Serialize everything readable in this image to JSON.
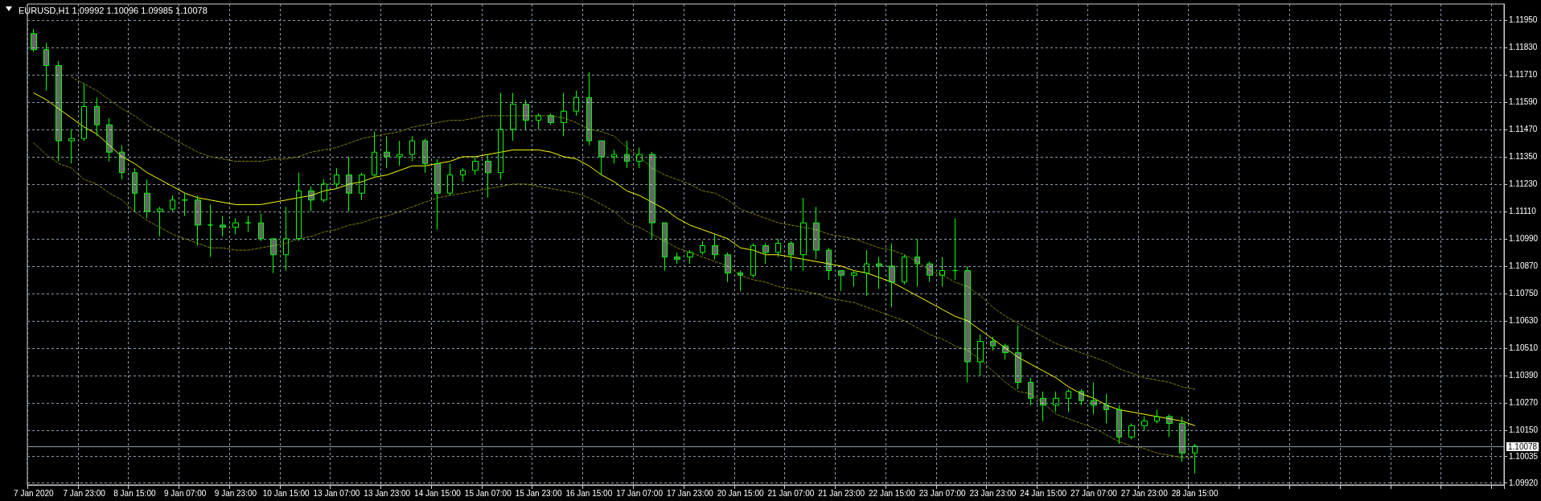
{
  "chart_data": {
    "type": "candlestick",
    "title": "EURUSD,H1 1.09992 1.10096 1.09985 1.10078",
    "color": "#00ff00",
    "categories": [
      "7 Jan 2020",
      null,
      null,
      null,
      "7 Jan 23:00",
      null,
      null,
      null,
      "8 Jan 15:00",
      null,
      null,
      null,
      "9 Jan 07:00",
      null,
      null,
      null,
      "9 Jan 23:00",
      null,
      null,
      null,
      "10 Jan 15:00",
      null,
      null,
      null,
      "13 Jan 07:00",
      null,
      null,
      null,
      "13 Jan 23:00",
      null,
      null,
      null,
      "14 Jan 15:00",
      null,
      null,
      null,
      "15 Jan 07:00",
      null,
      null,
      null,
      "15 Jan 23:00",
      null,
      null,
      null,
      "16 Jan 15:00",
      null,
      null,
      null,
      "17 Jan 07:00",
      null,
      null,
      null,
      "17 Jan 23:00",
      null,
      null,
      null,
      "20 Jan 15:00",
      null,
      null,
      null,
      "21 Jan 07:00",
      null,
      null,
      null,
      "21 Jan 23:00",
      null,
      null,
      null,
      "22 Jan 15:00",
      null,
      null,
      null,
      "23 Jan 07:00",
      null,
      null,
      null,
      "23 Jan 23:00",
      null,
      null,
      null,
      "24 Jan 15:00",
      null,
      null,
      null,
      "27 Jan 07:00",
      null,
      null,
      null,
      "27 Jan 23:00",
      null,
      null,
      null,
      "28 Jan 15:00",
      null,
      null,
      null,
      null,
      null,
      null,
      null,
      null,
      null,
      null,
      null,
      null,
      null,
      null,
      null,
      null,
      null,
      null,
      null,
      null,
      null,
      null,
      null,
      null
    ],
    "ohlc": [
      [
        1.1189,
        1.1191,
        1.1181,
        1.1182
      ],
      [
        1.1182,
        1.1185,
        1.1164,
        1.1175
      ],
      [
        1.1175,
        1.1177,
        1.1133,
        1.1142
      ],
      [
        1.1142,
        1.1147,
        1.1132,
        1.1143
      ],
      [
        1.1143,
        1.1167,
        1.1142,
        1.1157
      ],
      [
        1.1157,
        1.1161,
        1.1144,
        1.1149
      ],
      [
        1.1149,
        1.1152,
        1.1133,
        1.1137
      ],
      [
        1.1137,
        1.114,
        1.1125,
        1.1128
      ],
      [
        1.1128,
        1.113,
        1.1111,
        1.1119
      ],
      [
        1.1119,
        1.1125,
        1.1108,
        1.1111
      ],
      [
        1.1111,
        1.1113,
        1.11,
        1.1112
      ],
      [
        1.1112,
        1.1118,
        1.1111,
        1.1116
      ],
      [
        1.1116,
        1.1119,
        1.1109,
        1.1116
      ],
      [
        1.1116,
        1.1118,
        1.1096,
        1.1105
      ],
      [
        1.1105,
        1.1114,
        1.1091,
        1.1105
      ],
      [
        1.1105,
        1.1109,
        1.11,
        1.1104
      ],
      [
        1.1104,
        1.1108,
        1.1101,
        1.1106
      ],
      [
        1.1106,
        1.1109,
        1.1102,
        1.1106
      ],
      [
        1.1106,
        1.111,
        1.1098,
        1.1099
      ],
      [
        1.1099,
        1.1099,
        1.1084,
        1.1092
      ],
      [
        1.1092,
        1.1113,
        1.1085,
        1.1099
      ],
      [
        1.1099,
        1.1128,
        1.1098,
        1.112
      ],
      [
        1.112,
        1.1122,
        1.1111,
        1.1116
      ],
      [
        1.1116,
        1.1125,
        1.1115,
        1.1123
      ],
      [
        1.1123,
        1.113,
        1.1121,
        1.1127
      ],
      [
        1.1127,
        1.1135,
        1.1111,
        1.1119
      ],
      [
        1.1119,
        1.1128,
        1.1116,
        1.1127
      ],
      [
        1.1127,
        1.1146,
        1.1126,
        1.1137
      ],
      [
        1.1137,
        1.1144,
        1.113,
        1.1135
      ],
      [
        1.1135,
        1.1142,
        1.1131,
        1.1136
      ],
      [
        1.1136,
        1.1144,
        1.1133,
        1.1142
      ],
      [
        1.1142,
        1.1143,
        1.1128,
        1.1132
      ],
      [
        1.1132,
        1.1134,
        1.1103,
        1.1119
      ],
      [
        1.1119,
        1.1132,
        1.1118,
        1.1127
      ],
      [
        1.1127,
        1.113,
        1.1124,
        1.1129
      ],
      [
        1.1129,
        1.1135,
        1.1127,
        1.1133
      ],
      [
        1.1133,
        1.1136,
        1.1117,
        1.1128
      ],
      [
        1.1128,
        1.1163,
        1.1125,
        1.1147
      ],
      [
        1.1147,
        1.1163,
        1.1142,
        1.1158
      ],
      [
        1.1158,
        1.116,
        1.1147,
        1.1151
      ],
      [
        1.1151,
        1.1154,
        1.1147,
        1.1153
      ],
      [
        1.1153,
        1.1154,
        1.1149,
        1.115
      ],
      [
        1.115,
        1.1163,
        1.1144,
        1.1155
      ],
      [
        1.1155,
        1.1164,
        1.1153,
        1.1161
      ],
      [
        1.1161,
        1.1172,
        1.114,
        1.1142
      ],
      [
        1.1142,
        1.1142,
        1.1127,
        1.1135
      ],
      [
        1.1135,
        1.1138,
        1.1132,
        1.1136
      ],
      [
        1.1136,
        1.1142,
        1.113,
        1.1133
      ],
      [
        1.1133,
        1.1139,
        1.113,
        1.1136
      ],
      [
        1.1136,
        1.1137,
        1.1099,
        1.1106
      ],
      [
        1.1106,
        1.1106,
        1.1085,
        1.1091
      ],
      [
        1.1091,
        1.1093,
        1.1088,
        1.109
      ],
      [
        1.1091,
        1.1094,
        1.1088,
        1.1093
      ],
      [
        1.1093,
        1.1098,
        1.1092,
        1.1096
      ],
      [
        1.1096,
        1.1101,
        1.109,
        1.1092
      ],
      [
        1.1092,
        1.1093,
        1.108,
        1.1084
      ],
      [
        1.1084,
        1.1085,
        1.1076,
        1.1083
      ],
      [
        1.1083,
        1.1097,
        1.1082,
        1.1096
      ],
      [
        1.1096,
        1.1097,
        1.1088,
        1.1093
      ],
      [
        1.1093,
        1.1099,
        1.1091,
        1.1097
      ],
      [
        1.1097,
        1.1098,
        1.1085,
        1.1092
      ],
      [
        1.1092,
        1.1117,
        1.1085,
        1.1106
      ],
      [
        1.1106,
        1.1113,
        1.109,
        1.1094
      ],
      [
        1.1094,
        1.1095,
        1.1081,
        1.1085
      ],
      [
        1.1085,
        1.1085,
        1.1076,
        1.1083
      ],
      [
        1.1083,
        1.1085,
        1.1078,
        1.1084
      ],
      [
        1.1084,
        1.1094,
        1.1074,
        1.1088
      ],
      [
        1.1088,
        1.1091,
        1.1077,
        1.1087
      ],
      [
        1.1087,
        1.1097,
        1.1069,
        1.108
      ],
      [
        1.108,
        1.1092,
        1.1079,
        1.1091
      ],
      [
        1.1091,
        1.1099,
        1.1078,
        1.1088
      ],
      [
        1.1088,
        1.1089,
        1.108,
        1.1083
      ],
      [
        1.1083,
        1.1091,
        1.1078,
        1.1085
      ],
      [
        1.1085,
        1.1108,
        1.1081,
        1.1085
      ],
      [
        1.1085,
        1.1087,
        1.1036,
        1.1045
      ],
      [
        1.1045,
        1.1057,
        1.1039,
        1.1054
      ],
      [
        1.1054,
        1.1056,
        1.105,
        1.1052
      ],
      [
        1.1052,
        1.1053,
        1.1046,
        1.1049
      ],
      [
        1.1049,
        1.1061,
        1.1033,
        1.1036
      ],
      [
        1.1036,
        1.1038,
        1.1026,
        1.1029
      ],
      [
        1.1029,
        1.1032,
        1.1019,
        1.1026
      ],
      [
        1.1026,
        1.1032,
        1.1023,
        1.1029
      ],
      [
        1.1029,
        1.1033,
        1.1023,
        1.1032
      ],
      [
        1.1032,
        1.1033,
        1.1026,
        1.1028
      ],
      [
        1.1028,
        1.1036,
        1.1022,
        1.1026
      ],
      [
        1.1026,
        1.1031,
        1.1018,
        1.1024
      ],
      [
        1.1024,
        1.1026,
        1.1009,
        1.1012
      ],
      [
        1.1012,
        1.1018,
        1.1011,
        1.1017
      ],
      [
        1.1017,
        1.1021,
        1.1015,
        1.1019
      ],
      [
        1.1019,
        1.1024,
        1.1018,
        1.1021
      ],
      [
        1.1021,
        1.1022,
        1.1012,
        1.1018
      ],
      [
        1.1018,
        1.1021,
        1.1001,
        1.1005
      ],
      [
        1.1005,
        1.1009,
        1.0996,
        1.1008
      ],
      null,
      null,
      null,
      null,
      null,
      null,
      null,
      null,
      null,
      null,
      null,
      null,
      null,
      null,
      null,
      null,
      null,
      null,
      null,
      null,
      null,
      null,
      null,
      null
    ],
    "series": [
      {
        "type": "line",
        "color": "#ffff00",
        "line_style": "solid",
        "values": [
          1.1163,
          1.116,
          1.1156,
          1.1152,
          1.1148,
          1.1145,
          1.114,
          1.1135,
          1.1132,
          1.1128,
          1.1125,
          1.1122,
          1.1119,
          1.1117,
          1.1116,
          1.1115,
          1.1114,
          1.1114,
          1.1114,
          1.1115,
          1.1116,
          1.1117,
          1.1118,
          1.112,
          1.1121,
          1.1123,
          1.1124,
          1.1126,
          1.1127,
          1.1129,
          1.1131,
          1.1131,
          1.1132,
          1.1133,
          1.1135,
          1.1135,
          1.1136,
          1.1137,
          1.1138,
          1.1138,
          1.1138,
          1.1137,
          1.1135,
          1.1134,
          1.1131,
          1.1127,
          1.1124,
          1.112,
          1.1118,
          1.1115,
          1.1112,
          1.1108,
          1.1105,
          1.1103,
          1.1101,
          1.1099,
          1.1095,
          1.1094,
          1.1092,
          1.1092,
          1.1091,
          1.109,
          1.1089,
          1.1088,
          1.1087,
          1.1085,
          1.1084,
          1.1082,
          1.108,
          1.1077,
          1.1074,
          1.1071,
          1.1068,
          1.1065,
          1.1063,
          1.1059,
          1.1055,
          1.1051,
          1.1047,
          1.1044,
          1.1041,
          1.1038,
          1.1034,
          1.1031,
          1.1029,
          1.1026,
          1.1024,
          1.1023,
          1.1022,
          1.1021,
          1.102,
          1.1019,
          1.1017,
          null,
          null,
          null,
          null,
          null,
          null,
          null,
          null,
          null,
          null,
          null,
          null,
          null,
          null,
          null,
          null,
          null,
          null,
          null,
          null,
          null,
          null,
          null,
          null
        ]
      },
      {
        "type": "line",
        "color": "#808000",
        "line_style": "dashed",
        "values": [
          null,
          null,
          null,
          1.117,
          1.1167,
          1.1164,
          1.116,
          1.1156,
          1.1153,
          1.1149,
          1.1146,
          1.1143,
          1.114,
          1.1137,
          1.1135,
          1.1134,
          1.1133,
          1.1133,
          1.1133,
          1.1134,
          1.1134,
          1.1135,
          1.1137,
          1.1138,
          1.1139,
          1.1141,
          1.1143,
          1.1144,
          1.1145,
          1.1146,
          1.1148,
          1.1149,
          1.115,
          1.1151,
          1.1151,
          1.1152,
          1.1153,
          1.1153,
          1.1153,
          1.1153,
          1.1153,
          1.1153,
          1.1152,
          1.115,
          1.1147,
          1.1146,
          1.1144,
          1.1139,
          1.1135,
          1.113,
          1.1127,
          1.1125,
          1.1123,
          1.112,
          1.1119,
          1.1116,
          1.1112,
          1.111,
          1.1108,
          1.1106,
          1.1105,
          1.1104,
          1.1103,
          1.1101,
          1.11,
          1.1099,
          1.1097,
          1.1095,
          1.1094,
          1.1092,
          1.1089,
          1.1085,
          1.1083,
          1.108,
          1.1078,
          1.1074,
          1.1069,
          1.1065,
          1.1062,
          1.1059,
          1.1056,
          1.1053,
          1.1051,
          1.1049,
          1.1047,
          1.1045,
          1.1042,
          1.104,
          1.1038,
          1.1037,
          1.1036,
          1.1034,
          1.1033,
          null,
          null,
          null,
          null,
          null,
          null,
          null,
          null,
          null,
          null,
          null,
          null,
          null,
          null,
          null,
          null,
          null,
          null,
          null,
          null,
          null,
          null,
          null,
          null
        ]
      },
      {
        "type": "line",
        "color": "#808000",
        "line_style": "dashed",
        "values": [
          1.1141,
          1.1136,
          1.1132,
          1.113,
          1.1125,
          1.1123,
          1.1119,
          1.1116,
          1.1111,
          1.1107,
          1.1104,
          1.1101,
          1.1099,
          1.1097,
          1.1095,
          1.1095,
          1.1094,
          1.1094,
          1.1095,
          1.1096,
          1.1097,
          1.1099,
          1.11,
          1.1102,
          1.1103,
          1.1105,
          1.1106,
          1.1108,
          1.1109,
          1.1111,
          1.1113,
          1.1115,
          1.1117,
          1.1118,
          1.1119,
          1.112,
          1.1121,
          1.1122,
          1.1123,
          1.1123,
          1.1122,
          1.1121,
          1.112,
          1.1119,
          1.1117,
          1.1114,
          1.1111,
          1.1106,
          1.1104,
          1.1101,
          1.1098,
          1.1095,
          1.1093,
          1.1091,
          1.1089,
          1.1087,
          1.1083,
          1.1081,
          1.108,
          1.1078,
          1.1077,
          1.1076,
          1.1075,
          1.1073,
          1.1072,
          1.1071,
          1.1069,
          1.1067,
          1.1065,
          1.1063,
          1.106,
          1.1057,
          1.1055,
          1.1052,
          1.105,
          1.1046,
          1.1041,
          1.1036,
          1.1032,
          1.1031,
          1.1027,
          1.1022,
          1.102,
          1.1018,
          1.1016,
          1.1013,
          1.101,
          1.1008,
          1.1007,
          1.1005,
          1.1004,
          1.1003,
          1.1003,
          null,
          null,
          null,
          null,
          null,
          null,
          null,
          null,
          null,
          null,
          null,
          null,
          null,
          null,
          null,
          null,
          null,
          null,
          null,
          null,
          null,
          null,
          null,
          null
        ]
      }
    ],
    "ylim": [
      1.0991,
      1.1202
    ],
    "yticks": [
      {
        "value": 1.0992,
        "label": "1.09920"
      },
      {
        "value": 1.10035,
        "label": "1.10035"
      },
      {
        "value": 1.1015,
        "label": "1.10150"
      },
      {
        "value": 1.1027,
        "label": "1.10270"
      },
      {
        "value": 1.1039,
        "label": "1.10390"
      },
      {
        "value": 1.1051,
        "label": "1.10510"
      },
      {
        "value": 1.1063,
        "label": "1.10630"
      },
      {
        "value": 1.1075,
        "label": "1.10750"
      },
      {
        "value": 1.1087,
        "label": "1.10870"
      },
      {
        "value": 1.1099,
        "label": "1.10990"
      },
      {
        "value": 1.1111,
        "label": "1.11110"
      },
      {
        "value": 1.1123,
        "label": "1.11230"
      },
      {
        "value": 1.1135,
        "label": "1.11350"
      },
      {
        "value": 1.1147,
        "label": "1.11470"
      },
      {
        "value": 1.1159,
        "label": "1.11590"
      },
      {
        "value": 1.1171,
        "label": "1.11710"
      },
      {
        "value": 1.1183,
        "label": "1.11830"
      },
      {
        "value": 1.1195,
        "label": "1.11950"
      }
    ],
    "ref_lines": [
      {
        "axis": "y",
        "value": 1.10078,
        "label": "1.10078",
        "color": "#8c9cab"
      }
    ],
    "grid": true,
    "marker": "none"
  }
}
